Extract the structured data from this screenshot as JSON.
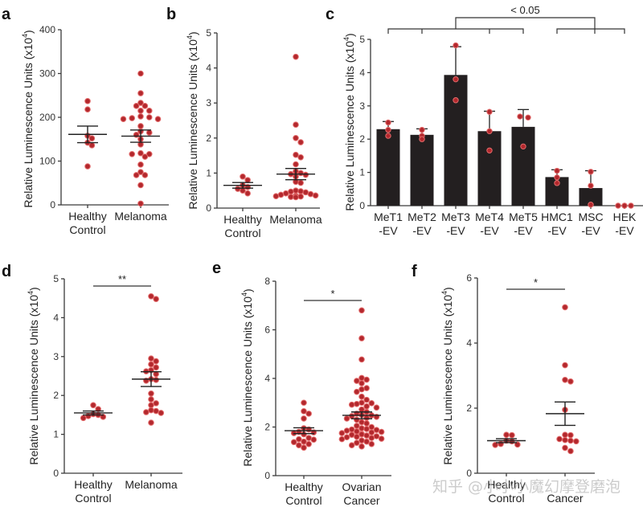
{
  "watermark": "知乎 @小小小魔幻摩登磨泡",
  "chart_data": [
    {
      "panel": "a",
      "type": "scatter",
      "ylabel": "Relative Luminescence Units (x10^4)",
      "ylim": [
        0,
        400
      ],
      "yticks": [
        0,
        100,
        200,
        300,
        400
      ],
      "categories": [
        "Healthy Control",
        "Melanoma"
      ],
      "category_lines": [
        [
          "Healthy",
          "Control"
        ],
        [
          "Melanoma"
        ]
      ],
      "series": [
        {
          "name": "Healthy Control",
          "values": [
            237,
            218,
            158,
            152,
            142,
            136,
            88
          ],
          "mean": 161,
          "sem": 19
        },
        {
          "name": "Melanoma",
          "values": [
            300,
            255,
            233,
            226,
            226,
            215,
            215,
            202,
            200,
            198,
            196,
            196,
            180,
            168,
            165,
            160,
            150,
            138,
            118,
            116,
            116,
            110,
            92,
            75,
            68,
            68,
            45,
            3
          ],
          "mean": 157,
          "sem": 14
        }
      ]
    },
    {
      "panel": "b",
      "type": "scatter",
      "ylabel": "Relative Luminescence Units (x10^4)",
      "ylim": [
        0,
        5
      ],
      "yticks": [
        0,
        1,
        2,
        3,
        4,
        5
      ],
      "categories": [
        "Healthy Control",
        "Melanoma"
      ],
      "category_lines": [
        [
          "Healthy",
          "Control"
        ],
        [
          "Melanoma"
        ]
      ],
      "series": [
        {
          "name": "Healthy Control",
          "values": [
            0.9,
            0.8,
            0.65,
            0.6,
            0.55,
            0.5,
            0.42
          ],
          "mean": 0.65,
          "sem": 0.08
        },
        {
          "name": "Melanoma",
          "values": [
            4.32,
            2.38,
            2.0,
            1.88,
            1.52,
            1.45,
            1.25,
            1.05,
            1.0,
            0.97,
            0.95,
            0.9,
            0.75,
            0.72,
            0.5,
            0.48,
            0.47,
            0.45,
            0.42,
            0.4,
            0.38,
            0.36,
            0.35,
            0.34,
            0.33,
            0.32,
            0.31
          ],
          "mean": 0.97,
          "sem": 0.16
        }
      ]
    },
    {
      "panel": "c",
      "type": "bar",
      "ylabel": "Relative Luminescence Units (x10^4)",
      "ylim": [
        0,
        5
      ],
      "yticks": [
        0,
        1,
        2,
        3,
        4,
        5
      ],
      "categories": [
        "MeT1-EV",
        "MeT2-EV",
        "MeT3-EV",
        "MeT4-EV",
        "MeT5-EV",
        "HMC1-EV",
        "MSC-EV",
        "HEK-EV"
      ],
      "category_lines": [
        [
          "MeT1",
          "-EV"
        ],
        [
          "MeT2",
          "-EV"
        ],
        [
          "MeT3",
          "-EV"
        ],
        [
          "MeT4",
          "-EV"
        ],
        [
          "MeT5",
          "-EV"
        ],
        [
          "HMC1",
          "-EV"
        ],
        [
          "MSC",
          "-EV"
        ],
        [
          "HEK",
          "-EV"
        ]
      ],
      "values": [
        2.3,
        2.13,
        3.93,
        2.24,
        2.37,
        0.86,
        0.53,
        0.0
      ],
      "errors": [
        0.23,
        0.18,
        0.85,
        0.6,
        0.52,
        0.22,
        0.52,
        0.0
      ],
      "points": [
        [
          2.5,
          2.28,
          2.1
        ],
        [
          2.28,
          2.1,
          2.0
        ],
        [
          4.82,
          3.8,
          3.17
        ],
        [
          2.82,
          2.24,
          1.66
        ],
        [
          2.68,
          2.65,
          1.78
        ],
        [
          1.05,
          0.85,
          0.68
        ],
        [
          1.02,
          0.6,
          0.03
        ],
        [
          0.0,
          0.0,
          0.0
        ]
      ],
      "annotation": {
        "text": "< 0.05",
        "group_left": [
          "MeT1-EV",
          "MeT2-EV",
          "MeT3-EV",
          "MeT4-EV",
          "MeT5-EV"
        ],
        "group_right": [
          "HMC1-EV",
          "MSC-EV",
          "HEK-EV"
        ]
      }
    },
    {
      "panel": "d",
      "type": "scatter",
      "ylabel": "Relative Luminescence Units (x10^4)",
      "ylim": [
        0,
        5
      ],
      "yticks": [
        0,
        1,
        2,
        3,
        4,
        5
      ],
      "categories": [
        "Healthy Control",
        "Melanoma"
      ],
      "category_lines": [
        [
          "Healthy",
          "Control"
        ],
        [
          "Melanoma"
        ]
      ],
      "significance": "**",
      "series": [
        {
          "name": "Healthy Control",
          "values": [
            1.75,
            1.65,
            1.52,
            1.5,
            1.47,
            1.45,
            1.42
          ],
          "mean": 1.55,
          "sem": 0.05
        },
        {
          "name": "Melanoma",
          "values": [
            4.55,
            4.48,
            2.95,
            2.88,
            2.8,
            2.72,
            2.65,
            2.62,
            2.55,
            2.42,
            2.4,
            2.38,
            2.05,
            1.9,
            1.8,
            1.75,
            1.62,
            1.6,
            1.57,
            1.55,
            1.3
          ],
          "mean": 2.42,
          "sem": 0.19
        }
      ]
    },
    {
      "panel": "e",
      "type": "scatter",
      "ylabel": "Relative Luminescence Units (x10^4)",
      "ylim": [
        0,
        8
      ],
      "yticks": [
        0,
        2,
        4,
        6,
        8
      ],
      "categories": [
        "Healthy Control",
        "Ovarian Cancer"
      ],
      "category_lines": [
        [
          "Healthy",
          "Control"
        ],
        [
          "Ovarian",
          "Cancer"
        ]
      ],
      "significance": "*",
      "series": [
        {
          "name": "Healthy Control",
          "values": [
            3.0,
            2.65,
            2.55,
            2.35,
            1.95,
            1.9,
            1.8,
            1.78,
            1.75,
            1.7,
            1.55,
            1.5,
            1.48,
            1.4,
            1.38,
            1.3,
            1.25,
            1.15
          ],
          "mean": 1.85,
          "sem": 0.12
        },
        {
          "name": "Ovarian Cancer",
          "values": [
            6.8,
            5.65,
            4.78,
            4.02,
            3.95,
            3.9,
            3.8,
            3.6,
            3.55,
            3.45,
            3.25,
            3.12,
            3.0,
            2.98,
            2.95,
            2.92,
            2.85,
            2.8,
            2.72,
            2.62,
            2.55,
            2.5,
            2.48,
            2.45,
            2.42,
            2.38,
            2.35,
            2.3,
            2.2,
            2.15,
            2.05,
            2.0,
            1.95,
            1.92,
            1.9,
            1.88,
            1.85,
            1.82,
            1.8,
            1.78,
            1.75,
            1.72,
            1.7,
            1.68,
            1.65,
            1.62,
            1.6,
            1.58,
            1.55,
            1.52,
            1.5,
            1.45,
            1.4,
            1.35,
            1.3,
            1.25,
            1.2
          ],
          "mean": 2.48,
          "sem": 0.14
        }
      ]
    },
    {
      "panel": "f",
      "type": "scatter",
      "ylabel": "Relative Luminescence Units (x10^4)",
      "ylim": [
        0,
        6
      ],
      "yticks": [
        0,
        2,
        4,
        6
      ],
      "categories": [
        "Healthy Control",
        "Cancer"
      ],
      "category_lines": [
        [
          "Healthy",
          "Control"
        ],
        [
          "",
          "Cancer"
        ]
      ],
      "significance": "*",
      "series": [
        {
          "name": "Healthy Control",
          "values": [
            1.18,
            1.17,
            1.0,
            0.98,
            0.9,
            0.88,
            0.87
          ],
          "mean": 1.0,
          "sem": 0.06
        },
        {
          "name": "Cancer",
          "values": [
            5.1,
            3.32,
            2.87,
            2.82,
            1.95,
            1.18,
            1.17,
            1.05,
            1.02,
            1.0,
            0.98,
            0.78,
            0.68
          ],
          "mean": 1.83,
          "sem": 0.36
        }
      ]
    }
  ]
}
